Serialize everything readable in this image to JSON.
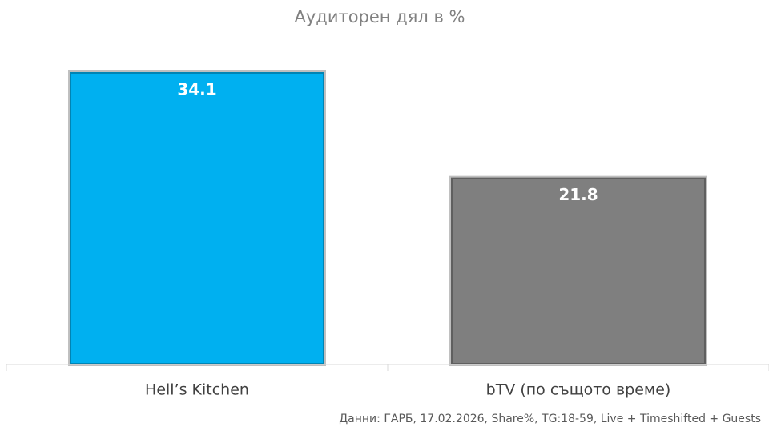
{
  "chart_data": {
    "type": "bar",
    "title": "Аудиторен дял в %",
    "categories": [
      "Hell’s Kitchen",
      "bTV (по същото време)"
    ],
    "values": [
      34.1,
      21.8
    ],
    "colors": [
      "#00b0f0",
      "#7f7f7f"
    ],
    "note": "Данни: ГАРБ, 17.02.2026, Share%, TG:18-59, Live + Timeshifted + Guests"
  }
}
